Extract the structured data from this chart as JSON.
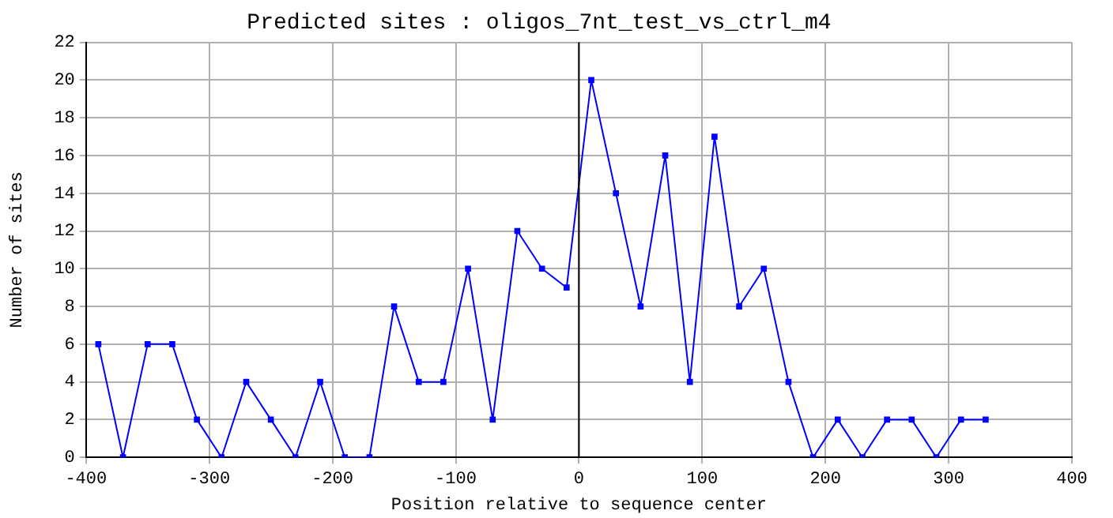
{
  "chart_data": {
    "type": "line",
    "title": "Predicted sites : oligos_7nt_test_vs_ctrl_m4",
    "xlabel": "Position relative to sequence center",
    "ylabel": "Number of sites",
    "x": [
      -390,
      -370,
      -350,
      -330,
      -310,
      -290,
      -270,
      -250,
      -230,
      -210,
      -190,
      -170,
      -150,
      -130,
      -110,
      -90,
      -70,
      -50,
      -30,
      -10,
      10,
      30,
      50,
      70,
      90,
      110,
      130,
      150,
      170,
      190,
      210,
      230,
      250,
      270,
      290,
      310,
      330
    ],
    "series": [
      {
        "color": "#0000ff",
        "values": [
          6,
          0,
          6,
          6,
          2,
          0,
          4,
          2,
          0,
          4,
          0,
          0,
          8,
          4,
          4,
          10,
          2,
          12,
          10,
          9,
          20,
          14,
          8,
          16,
          4,
          17,
          8,
          10,
          4,
          0,
          2,
          0,
          2,
          2,
          0,
          2,
          2
        ]
      }
    ],
    "xlim": [
      -400,
      400
    ],
    "xticks": [
      -400,
      -300,
      -200,
      -100,
      0,
      100,
      200,
      300,
      400
    ],
    "ylim": [
      0,
      22
    ],
    "yticks": [
      0,
      2,
      4,
      6,
      8,
      10,
      12,
      14,
      16,
      18,
      20,
      22
    ],
    "ref_lines": [
      {
        "axis": "x",
        "value": 0,
        "color": "#000000"
      }
    ],
    "grid": true,
    "legend": false,
    "marker": "square",
    "line_style": "solid"
  }
}
